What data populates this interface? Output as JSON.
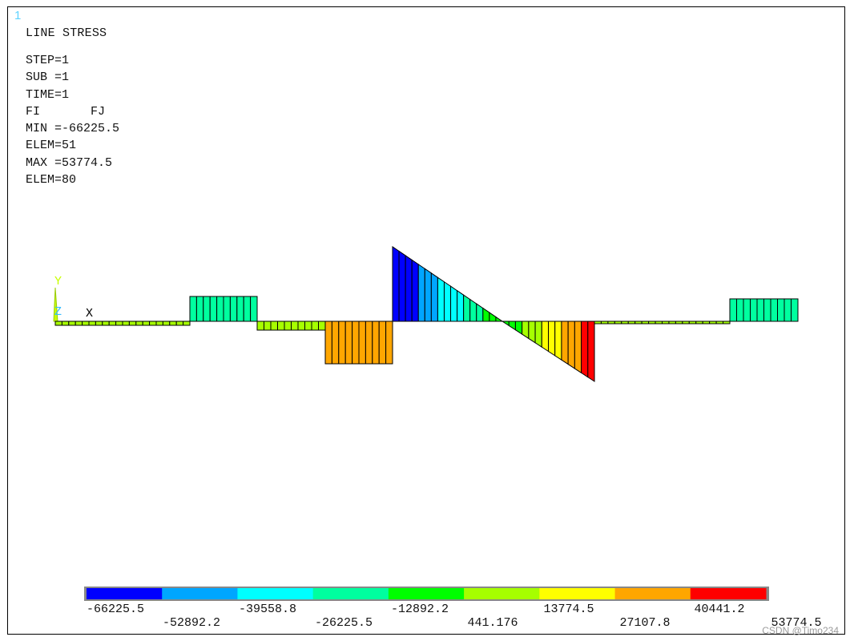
{
  "window_number": "1",
  "title": "LINE STRESS",
  "info_lines": [
    "STEP=1",
    "SUB =1",
    "TIME=1",
    "FI       FJ",
    "MIN =-66225.5",
    "ELEM=51",
    "MAX =53774.5",
    "ELEM=80"
  ],
  "triad": {
    "y_label": "Y",
    "z_label": "Z",
    "x_label": "X"
  },
  "legend": {
    "labels_top": [
      "-66225.5",
      "-39558.8",
      "-12892.2",
      "13774.5",
      "40441.2"
    ],
    "labels_bottom": [
      "-52892.2",
      "-26225.5",
      "441.176",
      "27107.8",
      "53774.5"
    ],
    "colors": [
      "#0000ff",
      "#00a6ff",
      "#00ffff",
      "#00ff9f",
      "#00ff00",
      "#a6ff00",
      "#ffff00",
      "#ffa600",
      "#ff0000"
    ]
  },
  "watermark": "CSDN @Timo234"
}
